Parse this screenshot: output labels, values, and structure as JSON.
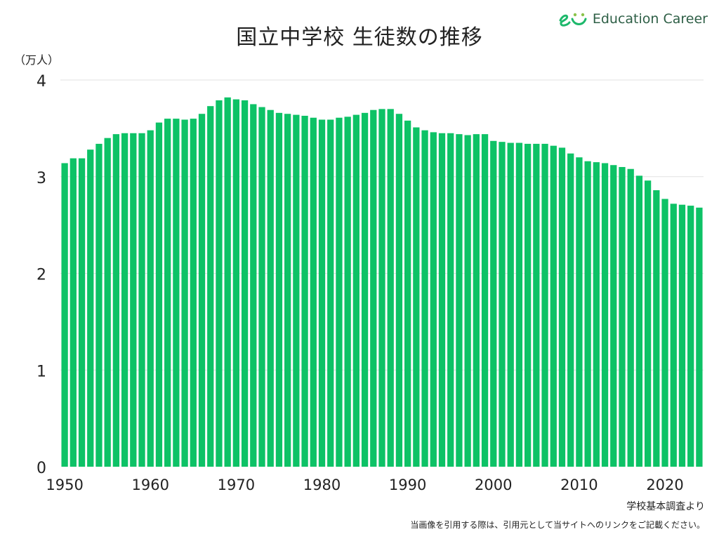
{
  "title": "国立中学校 生徒数の推移",
  "logo": {
    "text": "Education Career"
  },
  "colors": {
    "bar": "#0dc266",
    "grid": "#e2e2e2",
    "text": "#222222"
  },
  "source": "学校基本調査より",
  "notice": "当画像を引用する際は、引用元として当サイトへのリンクをご記載ください。",
  "chart_data": {
    "type": "bar",
    "title": "国立中学校 生徒数の推移",
    "unit_label": "（万人）",
    "xlabel": "",
    "ylabel": "",
    "ylim": [
      0,
      4
    ],
    "y_ticks": [
      "0",
      "1",
      "2",
      "3",
      "4"
    ],
    "x_ticks": [
      "1950",
      "1960",
      "1970",
      "1980",
      "1990",
      "2000",
      "2010",
      "2020"
    ],
    "grid": true,
    "categories": [
      1950,
      1951,
      1952,
      1953,
      1954,
      1955,
      1956,
      1957,
      1958,
      1959,
      1960,
      1961,
      1962,
      1963,
      1964,
      1965,
      1966,
      1967,
      1968,
      1969,
      1970,
      1971,
      1972,
      1973,
      1974,
      1975,
      1976,
      1977,
      1978,
      1979,
      1980,
      1981,
      1982,
      1983,
      1984,
      1985,
      1986,
      1987,
      1988,
      1989,
      1990,
      1991,
      1992,
      1993,
      1994,
      1995,
      1996,
      1997,
      1998,
      1999,
      2000,
      2001,
      2002,
      2003,
      2004,
      2005,
      2006,
      2007,
      2008,
      2009,
      2010,
      2011,
      2012,
      2013,
      2014,
      2015,
      2016,
      2017,
      2018,
      2019,
      2020,
      2021,
      2022,
      2023,
      2024
    ],
    "values": [
      3.14,
      3.19,
      3.19,
      3.28,
      3.34,
      3.4,
      3.44,
      3.45,
      3.45,
      3.45,
      3.48,
      3.56,
      3.6,
      3.6,
      3.59,
      3.6,
      3.65,
      3.73,
      3.79,
      3.82,
      3.8,
      3.79,
      3.75,
      3.72,
      3.69,
      3.66,
      3.65,
      3.64,
      3.63,
      3.61,
      3.59,
      3.59,
      3.61,
      3.62,
      3.64,
      3.66,
      3.69,
      3.7,
      3.7,
      3.65,
      3.58,
      3.51,
      3.48,
      3.46,
      3.45,
      3.45,
      3.44,
      3.43,
      3.44,
      3.44,
      3.37,
      3.36,
      3.35,
      3.35,
      3.34,
      3.34,
      3.34,
      3.32,
      3.3,
      3.24,
      3.2,
      3.16,
      3.15,
      3.14,
      3.12,
      3.1,
      3.08,
      3.01,
      2.96,
      2.86,
      2.77,
      2.72,
      2.71,
      2.7,
      2.68
    ]
  }
}
